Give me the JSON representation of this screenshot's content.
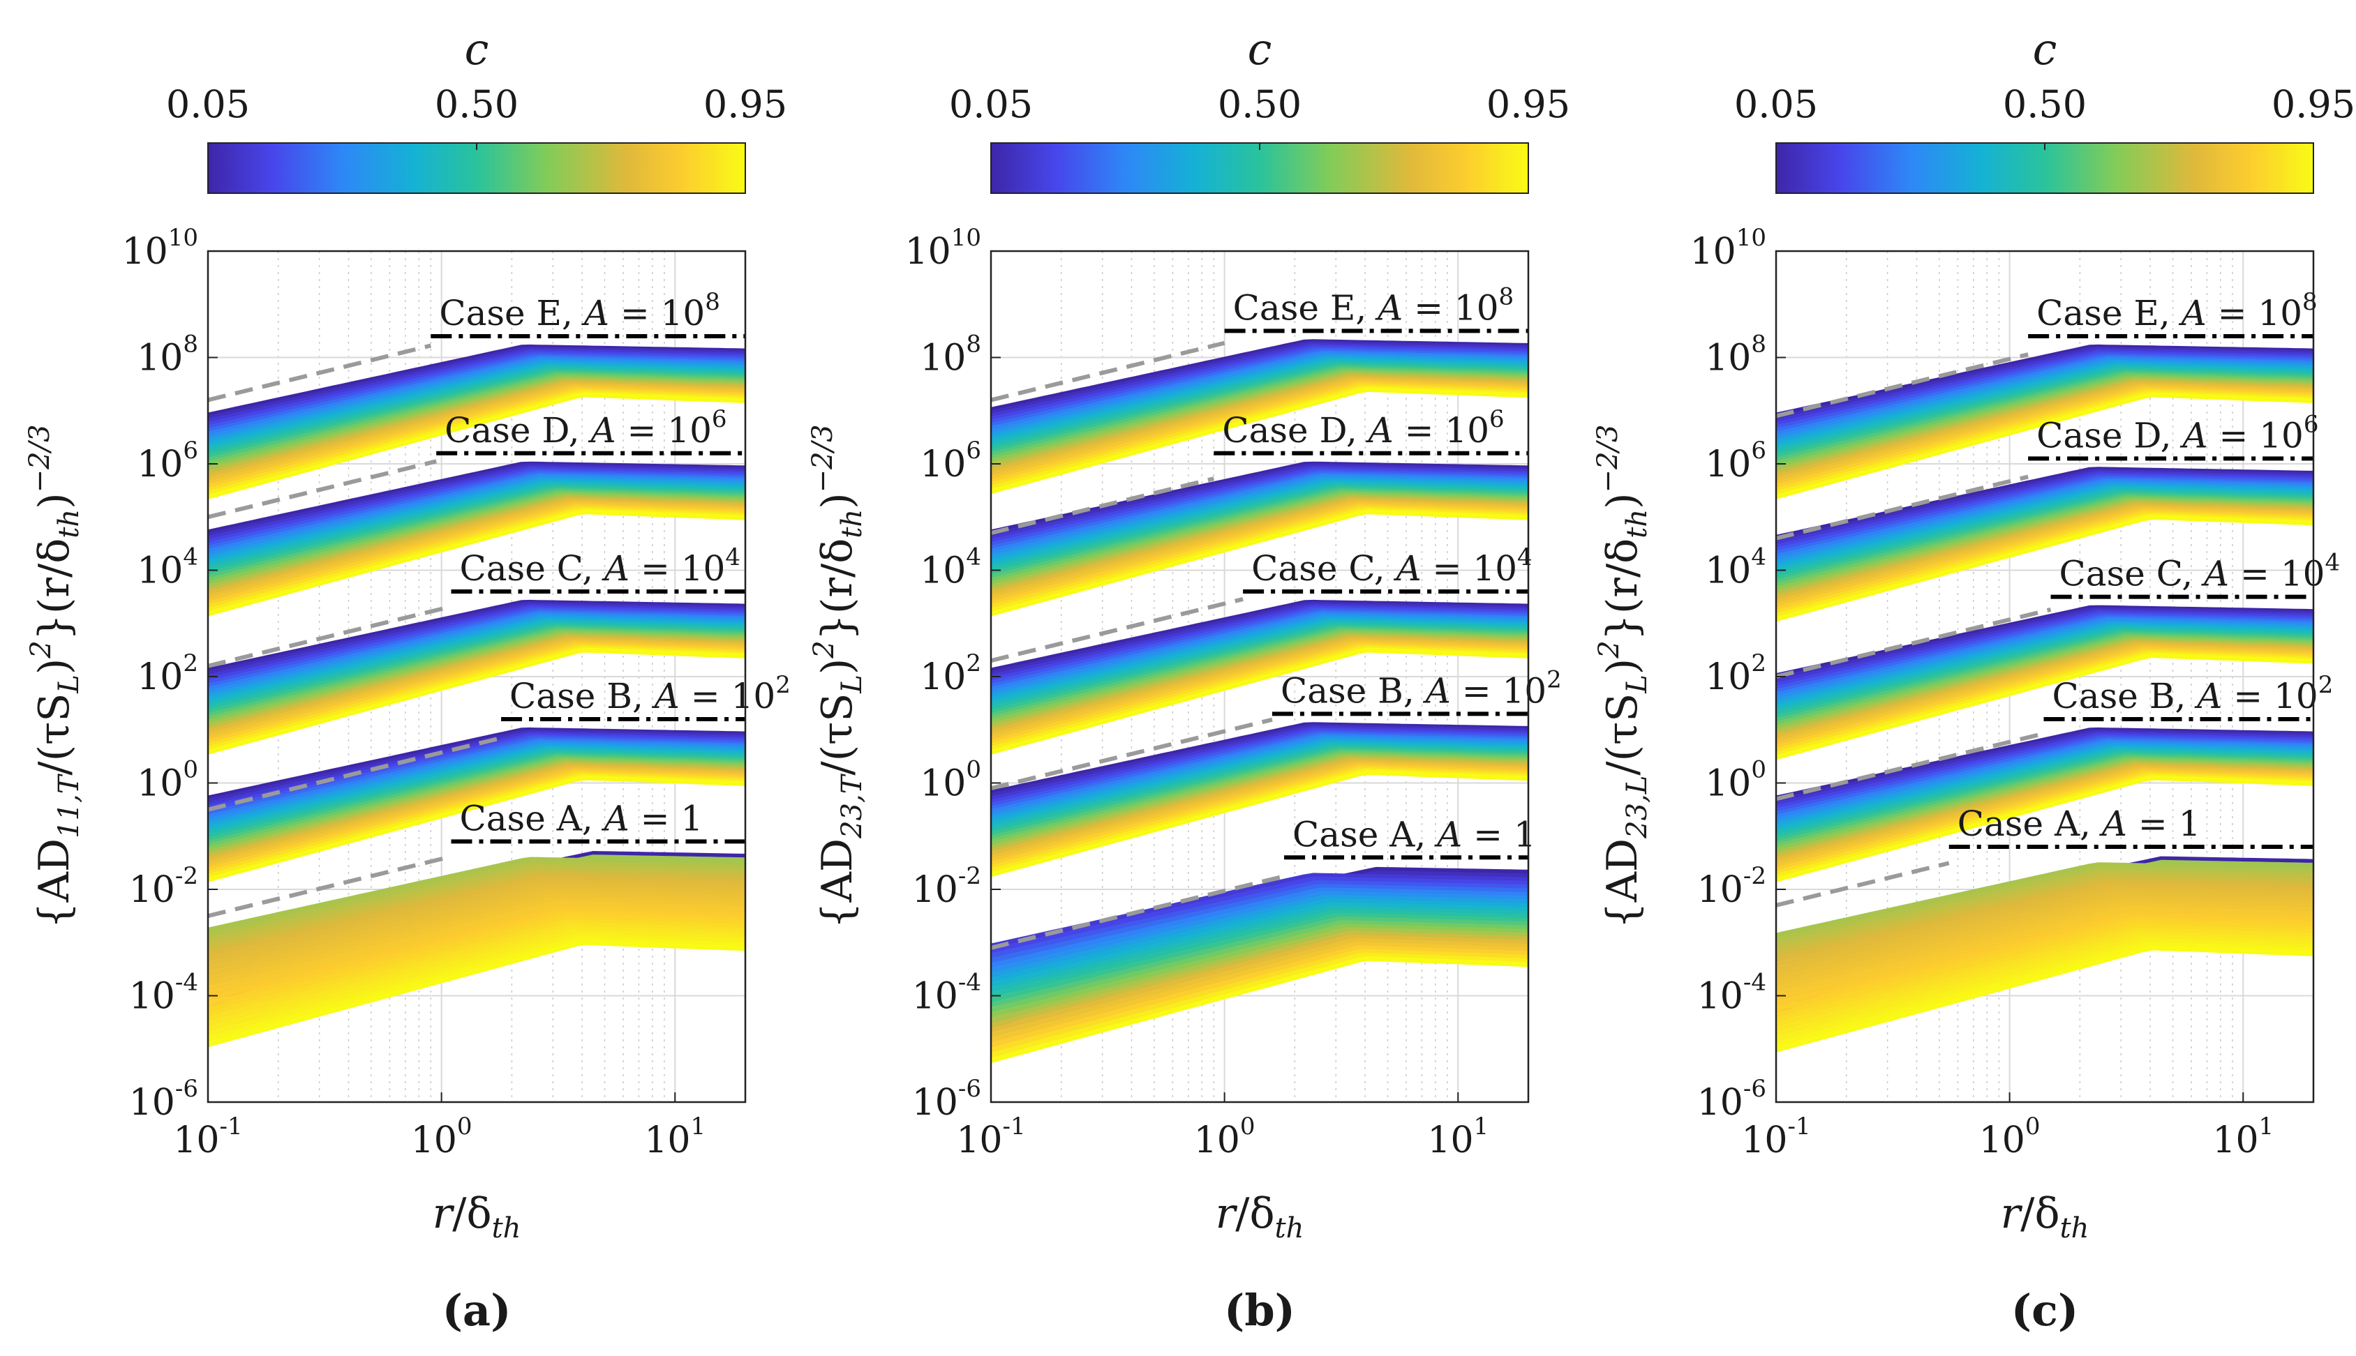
{
  "chart_data": [
    {
      "panel": "(a)",
      "type": "line",
      "ylabel_main": "{AD",
      "ylabel_sub": "11,T",
      "ylabel_rest": "/(τS",
      "xlabel": "r/δth",
      "colorbar": {
        "label": "c",
        "ticks": [
          "0.05",
          "0.50",
          "0.95"
        ],
        "range": [
          0.05,
          0.95
        ]
      },
      "xlim": [
        0.1,
        20
      ],
      "ylim_log10": [
        -6,
        10
      ],
      "series": [
        {
          "name": "Case E, A = 10^8",
          "label_main": "Case E, ",
          "label_exp": "8",
          "plateau_log10": 8.4,
          "early_log10": 7.2,
          "dash_start": 0.9
        },
        {
          "name": "Case D, A = 10^6",
          "label_main": "Case D, ",
          "label_exp": "6",
          "plateau_log10": 6.2,
          "early_log10": 5.0,
          "dash_start": 0.95
        },
        {
          "name": "Case C, A = 10^4",
          "label_main": "Case C, ",
          "label_exp": "4",
          "plateau_log10": 3.6,
          "early_log10": 2.2,
          "dash_start": 1.1
        },
        {
          "name": "Case B, A = 10^2",
          "label_main": "Case B, ",
          "label_exp": "2",
          "plateau_log10": 1.2,
          "early_log10": -0.5,
          "dash_start": 1.8
        },
        {
          "name": "Case A, A = 1",
          "label_main": "Case A, ",
          "label_exp": "",
          "plateau_log10": -1.1,
          "early_log10": -2.5,
          "dash_start": 1.1
        }
      ]
    },
    {
      "panel": "(b)",
      "type": "line",
      "ylabel_main": "{AD",
      "ylabel_sub": "23,T",
      "ylabel_rest": "/(τS",
      "xlabel": "r/δth",
      "colorbar": {
        "label": "c",
        "ticks": [
          "0.05",
          "0.50",
          "0.95"
        ],
        "range": [
          0.05,
          0.95
        ]
      },
      "xlim": [
        0.1,
        20
      ],
      "ylim_log10": [
        -6,
        10
      ],
      "series": [
        {
          "name": "Case E, A = 10^8",
          "label_main": "Case E, ",
          "label_exp": "8",
          "plateau_log10": 8.5,
          "early_log10": 7.2,
          "dash_start": 1.0
        },
        {
          "name": "Case D, A = 10^6",
          "label_main": "Case D, ",
          "label_exp": "6",
          "plateau_log10": 6.2,
          "early_log10": 4.7,
          "dash_start": 0.9
        },
        {
          "name": "Case C, A = 10^4",
          "label_main": "Case C, ",
          "label_exp": "4",
          "plateau_log10": 3.6,
          "early_log10": 2.3,
          "dash_start": 1.2
        },
        {
          "name": "Case B, A = 10^2",
          "label_main": "Case B, ",
          "label_exp": "2",
          "plateau_log10": 1.3,
          "early_log10": -0.1,
          "dash_start": 1.6
        },
        {
          "name": "Case A, A = 1",
          "label_main": "Case A, ",
          "label_exp": "",
          "plateau_log10": -1.4,
          "early_log10": -3.1,
          "dash_start": 1.8
        }
      ]
    },
    {
      "panel": "(c)",
      "type": "line",
      "ylabel_main": "{AD",
      "ylabel_sub": "23,L",
      "ylabel_rest": "/(τS",
      "xlabel": "r/δth",
      "colorbar": {
        "label": "c",
        "ticks": [
          "0.05",
          "0.50",
          "0.95"
        ],
        "range": [
          0.05,
          0.95
        ]
      },
      "xlim": [
        0.1,
        20
      ],
      "ylim_log10": [
        -6,
        10
      ],
      "series": [
        {
          "name": "Case E, A = 10^8",
          "label_main": "Case E, ",
          "label_exp": "8",
          "plateau_log10": 8.4,
          "early_log10": 6.9,
          "dash_start": 1.2
        },
        {
          "name": "Case D, A = 10^6",
          "label_main": "Case D, ",
          "label_exp": "6",
          "plateau_log10": 6.1,
          "early_log10": 4.6,
          "dash_start": 1.2
        },
        {
          "name": "Case C, A = 10^4",
          "label_main": "Case C, ",
          "label_exp": "4",
          "plateau_log10": 3.5,
          "early_log10": 2.0,
          "dash_start": 1.5
        },
        {
          "name": "Case B, A = 10^2",
          "label_main": "Case B, ",
          "label_exp": "2",
          "plateau_log10": 1.2,
          "early_log10": -0.3,
          "dash_start": 1.4
        },
        {
          "name": "Case A, A = 1",
          "label_main": "Case A, ",
          "label_exp": "",
          "plateau_log10": -1.2,
          "early_log10": -2.3,
          "dash_start": 0.55
        }
      ]
    }
  ],
  "shared": {
    "ytick_labels": [
      "10",
      "10",
      "10",
      "10",
      "10",
      "10",
      "10",
      "10",
      "10"
    ],
    "ytick_exps": [
      "-6",
      "-4",
      "-2",
      "0",
      "2",
      "4",
      "6",
      "8",
      "10"
    ],
    "xtick_bases": [
      "10",
      "10",
      "10"
    ],
    "xtick_exps": [
      "-1",
      "0",
      "1"
    ],
    "ylabel_tail": ")",
    "ylabel_tail_sup": "2",
    "ylabel_close": "}(r/δ",
    "ylabel_close_sub": "th",
    "ylabel_final": ")",
    "ylabel_final_sup": "−2/3",
    "case_eq": "A = 10",
    "case_eq_one": "A = 1",
    "colors": {
      "parula": [
        "#3e26a8",
        "#4746eb",
        "#2e87f7",
        "#15b1d5",
        "#2ac39c",
        "#81cc59",
        "#e0b93b",
        "#fccc2f",
        "#f9fb15"
      ],
      "dash_gray": "#9a9a9a",
      "plateau": "#000000",
      "grid": "#d9d9d9"
    }
  }
}
